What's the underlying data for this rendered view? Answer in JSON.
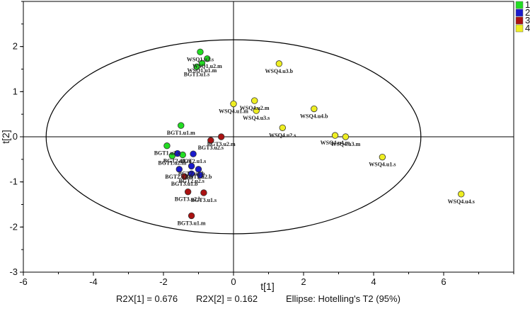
{
  "chart_data": {
    "type": "scatter",
    "xlabel": "t[1]",
    "ylabel": "t[2]",
    "xlim": [
      -6,
      8
    ],
    "ylim": [
      -3,
      3
    ],
    "x_ticks": [
      -6,
      -4,
      -2,
      0,
      2,
      4,
      6
    ],
    "y_ticks": [
      -3,
      -2,
      -1,
      0,
      1,
      2
    ],
    "grid": false,
    "legend_position": "top-right",
    "ellipse": {
      "center": [
        0,
        0
      ],
      "rx": 5.35,
      "ry": 2.15,
      "label": "Ellipse: Hotelling's T2 (95%)"
    },
    "series": [
      {
        "name": "1",
        "color": "#22dd22",
        "points": [
          {
            "x": -0.95,
            "y": 1.88,
            "label": "WSQ1.u2.s"
          },
          {
            "x": -0.75,
            "y": 1.73,
            "label": "WSQ1.u2.m"
          },
          {
            "x": -0.9,
            "y": 1.63,
            "label": "WSQ1.u1.m"
          },
          {
            "x": -1.05,
            "y": 1.55,
            "label": "BGT1.u1.s"
          },
          {
            "x": -1.5,
            "y": 0.25,
            "label": "BGT1.u1.m"
          },
          {
            "x": -1.9,
            "y": -0.2,
            "label": "BGT1.u2.s"
          },
          {
            "x": -1.75,
            "y": -0.42,
            "label": "BGT1.u2.m"
          },
          {
            "x": -1.45,
            "y": -0.4,
            "label": ""
          }
        ]
      },
      {
        "name": "2",
        "color": "#1a1acc",
        "points": [
          {
            "x": -1.6,
            "y": -0.37,
            "label": "BGT2.u1.m"
          },
          {
            "x": -1.15,
            "y": -0.38,
            "label": "BGT2.u1.s"
          },
          {
            "x": -1.2,
            "y": -0.65,
            "label": "BGT2.u1.b"
          },
          {
            "x": -1.0,
            "y": -0.72,
            "label": "BGT2.u2.b"
          },
          {
            "x": -1.55,
            "y": -0.72,
            "label": "BGT2.u2.m"
          },
          {
            "x": -1.2,
            "y": -0.82,
            "label": "BGT2.u2.s"
          },
          {
            "x": -0.95,
            "y": -0.85,
            "label": ""
          }
        ]
      },
      {
        "name": "3",
        "color": "#aa1111",
        "points": [
          {
            "x": -0.35,
            "y": 0.0,
            "label": "BGT3.u2.m"
          },
          {
            "x": -0.65,
            "y": -0.08,
            "label": "BGT3.u2.s"
          },
          {
            "x": -1.4,
            "y": -0.88,
            "label": "BGT3.u1.b"
          },
          {
            "x": -1.3,
            "y": -1.22,
            "label": "BGT3.u2.b"
          },
          {
            "x": -0.85,
            "y": -1.24,
            "label": "BGT3.u1.s"
          },
          {
            "x": -1.2,
            "y": -1.75,
            "label": "BGT3.u1.m"
          }
        ]
      },
      {
        "name": "4",
        "color": "#eeee22",
        "points": [
          {
            "x": 1.3,
            "y": 1.62,
            "label": "WSQ4.u3.b"
          },
          {
            "x": 0.6,
            "y": 0.8,
            "label": "WSQ4.u2.m"
          },
          {
            "x": 0.0,
            "y": 0.73,
            "label": "WSQ4.u1.m"
          },
          {
            "x": 0.65,
            "y": 0.58,
            "label": "WSQ4.u3.s"
          },
          {
            "x": 2.3,
            "y": 0.62,
            "label": "WSQ4.u4.b"
          },
          {
            "x": 1.4,
            "y": 0.2,
            "label": "WSQ4.u2.s"
          },
          {
            "x": 2.9,
            "y": 0.03,
            "label": "WSQ4.u4.m"
          },
          {
            "x": 3.2,
            "y": 0.0,
            "label": "WSQ4.u3.m"
          },
          {
            "x": 4.25,
            "y": -0.45,
            "label": "WSQ4.u1.s"
          },
          {
            "x": 6.5,
            "y": -1.27,
            "label": "WSQ4.u4.s"
          }
        ]
      }
    ]
  },
  "footer": {
    "r2x1": "R2X[1] = 0.676",
    "r2x2": "R2X[2] = 0.162",
    "ellipse": "Ellipse: Hotelling's T2 (95%)"
  }
}
